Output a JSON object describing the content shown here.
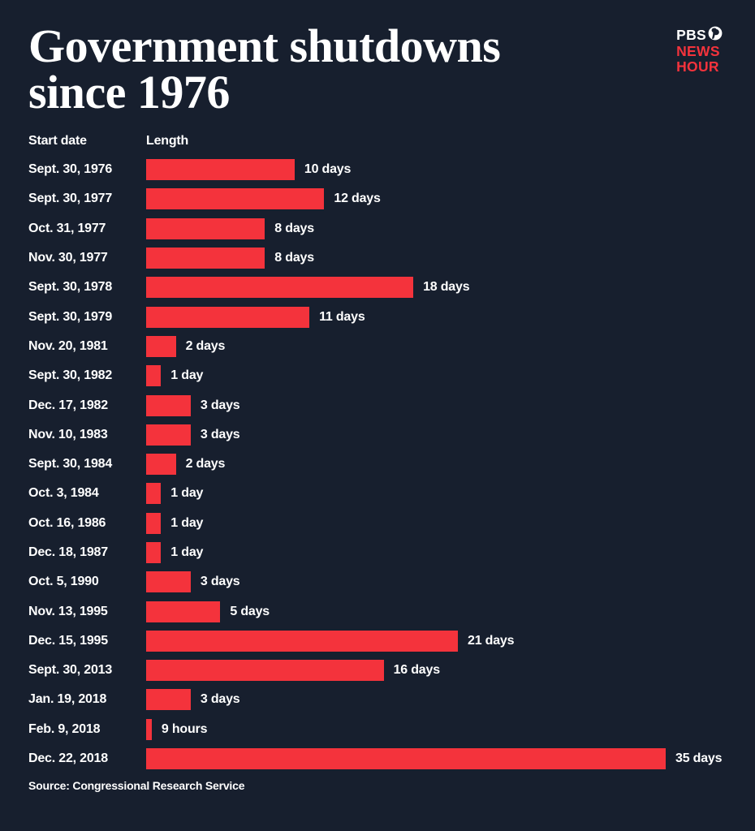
{
  "header": {
    "title_line1": "Government shutdowns",
    "title_line2": "since 1976",
    "logo": {
      "line1": "PBS",
      "line2": "NEWS",
      "line3": "HOUR"
    }
  },
  "columns": {
    "start_date": "Start date",
    "length": "Length"
  },
  "source": "Source: Congressional Research Service",
  "colors": {
    "background": "#171F2E",
    "bar_red": "#F4333C",
    "text": "#FFFFFF"
  },
  "chart_data": {
    "type": "bar",
    "orientation": "horizontal",
    "title": "Government shutdowns since 1976",
    "xlabel": "Length",
    "ylabel": "Start date",
    "unit": "days",
    "xlim": [
      0,
      35
    ],
    "grid": false,
    "legend": false,
    "categories": [
      "Sept. 30, 1976",
      "Sept. 30, 1977",
      "Oct. 31, 1977",
      "Nov. 30, 1977",
      "Sept. 30, 1978",
      "Sept. 30, 1979",
      "Nov. 20, 1981",
      "Sept. 30, 1982",
      "Dec. 17, 1982",
      "Nov. 10, 1983",
      "Sept. 30, 1984",
      "Oct. 3, 1984",
      "Oct. 16, 1986",
      "Dec. 18, 1987",
      "Oct. 5, 1990",
      "Nov. 13, 1995",
      "Dec. 15, 1995",
      "Sept. 30, 2013",
      "Jan. 19, 2018",
      "Feb. 9, 2018",
      "Dec. 22, 2018"
    ],
    "values": [
      10,
      12,
      8,
      8,
      18,
      11,
      2,
      1,
      3,
      3,
      2,
      1,
      1,
      1,
      3,
      5,
      21,
      16,
      3,
      0.375,
      35
    ],
    "rows": [
      {
        "date": "Sept. 30, 1976",
        "days": 10,
        "label": "10 days"
      },
      {
        "date": "Sept. 30, 1977",
        "days": 12,
        "label": "12 days"
      },
      {
        "date": "Oct. 31, 1977",
        "days": 8,
        "label": "8 days"
      },
      {
        "date": "Nov. 30, 1977",
        "days": 8,
        "label": "8 days"
      },
      {
        "date": "Sept. 30, 1978",
        "days": 18,
        "label": "18 days"
      },
      {
        "date": "Sept. 30, 1979",
        "days": 11,
        "label": "11 days"
      },
      {
        "date": "Nov. 20, 1981",
        "days": 2,
        "label": "2 days"
      },
      {
        "date": "Sept. 30, 1982",
        "days": 1,
        "label": "1 day"
      },
      {
        "date": "Dec. 17, 1982",
        "days": 3,
        "label": "3 days"
      },
      {
        "date": "Nov. 10, 1983",
        "days": 3,
        "label": "3 days"
      },
      {
        "date": "Sept. 30, 1984",
        "days": 2,
        "label": "2 days"
      },
      {
        "date": "Oct. 3, 1984",
        "days": 1,
        "label": "1 day"
      },
      {
        "date": "Oct. 16, 1986",
        "days": 1,
        "label": "1 day"
      },
      {
        "date": "Dec. 18, 1987",
        "days": 1,
        "label": "1 day"
      },
      {
        "date": "Oct. 5, 1990",
        "days": 3,
        "label": "3 days"
      },
      {
        "date": "Nov. 13, 1995",
        "days": 5,
        "label": "5 days"
      },
      {
        "date": "Dec. 15, 1995",
        "days": 21,
        "label": "21 days"
      },
      {
        "date": "Sept. 30, 2013",
        "days": 16,
        "label": "16 days"
      },
      {
        "date": "Jan. 19, 2018",
        "days": 3,
        "label": "3 days"
      },
      {
        "date": "Feb. 9, 2018",
        "days": 0.375,
        "label": "9 hours"
      },
      {
        "date": "Dec. 22, 2018",
        "days": 35,
        "label": "35 days"
      }
    ]
  }
}
